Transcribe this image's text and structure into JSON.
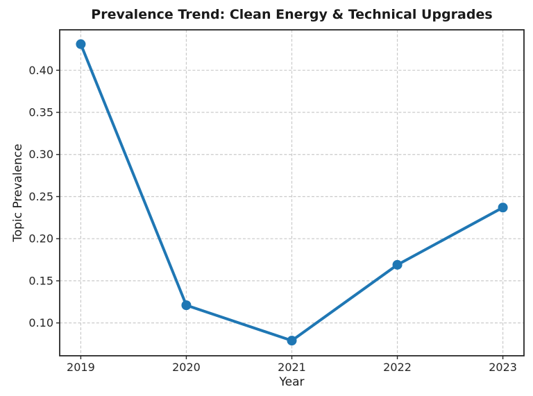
{
  "chart_data": {
    "type": "line",
    "title": "Prevalence Trend: Clean Energy & Technical Upgrades",
    "xlabel": "Year",
    "ylabel": "Topic Prevalence",
    "x": [
      2019,
      2020,
      2021,
      2022,
      2023
    ],
    "series": [
      {
        "name": "Topic Prevalence",
        "values": [
          0.431,
          0.121,
          0.079,
          0.169,
          0.237
        ]
      }
    ],
    "xticks": [
      2019,
      2020,
      2021,
      2022,
      2023
    ],
    "yticks": [
      0.1,
      0.15,
      0.2,
      0.25,
      0.3,
      0.35,
      0.4
    ],
    "xlim": [
      2018.8,
      2023.2
    ],
    "ylim": [
      0.061,
      0.448
    ],
    "grid": true,
    "grid_style": "dashed",
    "legend": false,
    "colors": {
      "line": "#1f77b4",
      "marker": "#1f77b4",
      "grid": "#c9c9c9",
      "spine": "#262626",
      "text": "#1a1a1a"
    }
  }
}
